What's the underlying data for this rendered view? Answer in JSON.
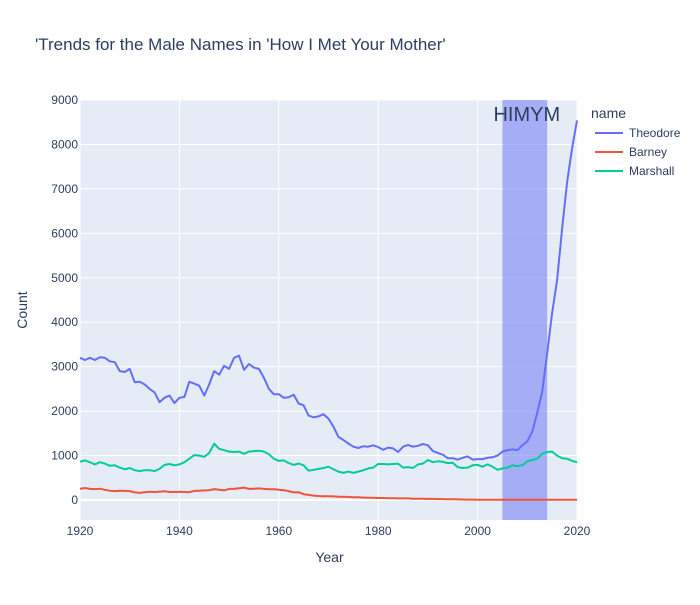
{
  "chart_data": {
    "type": "line",
    "title": "'Trends for the Male Names in 'How I Met Your Mother'",
    "xlabel": "Year",
    "ylabel": "Count",
    "xlim": [
      1920,
      2020
    ],
    "ylim": [
      -450,
      9000
    ],
    "x_ticks": [
      1920,
      1940,
      1960,
      1980,
      2000,
      2020
    ],
    "y_ticks": [
      0,
      1000,
      2000,
      3000,
      4000,
      5000,
      6000,
      7000,
      8000,
      9000
    ],
    "grid": true,
    "legend_title": "name",
    "legend_position": "right",
    "annotation": {
      "label": "HIMYM",
      "x_start": 2005,
      "x_end": 2014,
      "color": "#7a84f8"
    },
    "series": [
      {
        "name": "Theodore",
        "color": "#636efa",
        "x": [
          1920,
          1921,
          1922,
          1923,
          1924,
          1925,
          1926,
          1927,
          1928,
          1929,
          1930,
          1931,
          1932,
          1933,
          1934,
          1935,
          1936,
          1937,
          1938,
          1939,
          1940,
          1941,
          1942,
          1943,
          1944,
          1945,
          1946,
          1947,
          1948,
          1949,
          1950,
          1951,
          1952,
          1953,
          1954,
          1955,
          1956,
          1957,
          1958,
          1959,
          1960,
          1961,
          1962,
          1963,
          1964,
          1965,
          1966,
          1967,
          1968,
          1969,
          1970,
          1971,
          1972,
          1973,
          1974,
          1975,
          1976,
          1977,
          1978,
          1979,
          1980,
          1981,
          1982,
          1983,
          1984,
          1985,
          1986,
          1987,
          1988,
          1989,
          1990,
          1991,
          1992,
          1993,
          1994,
          1995,
          1996,
          1997,
          1998,
          1999,
          2000,
          2001,
          2002,
          2003,
          2004,
          2005,
          2006,
          2007,
          2008,
          2009,
          2010,
          2011,
          2012,
          2013,
          2014,
          2015,
          2016,
          2017,
          2018,
          2019,
          2020
        ],
        "values": [
          3200,
          3150,
          3200,
          3150,
          3210,
          3200,
          3120,
          3100,
          2900,
          2880,
          2950,
          2650,
          2660,
          2600,
          2500,
          2420,
          2200,
          2300,
          2350,
          2180,
          2300,
          2320,
          2660,
          2620,
          2570,
          2350,
          2600,
          2900,
          2820,
          3020,
          2950,
          3200,
          3250,
          2930,
          3060,
          2980,
          2950,
          2750,
          2500,
          2380,
          2380,
          2300,
          2310,
          2370,
          2170,
          2130,
          1900,
          1860,
          1880,
          1930,
          1830,
          1650,
          1420,
          1350,
          1270,
          1200,
          1170,
          1210,
          1200,
          1230,
          1190,
          1130,
          1180,
          1160,
          1080,
          1200,
          1240,
          1200,
          1220,
          1260,
          1230,
          1100,
          1060,
          1020,
          940,
          940,
          910,
          950,
          980,
          910,
          920,
          920,
          950,
          960,
          1000,
          1090,
          1120,
          1140,
          1120,
          1230,
          1320,
          1540,
          1960,
          2440,
          3300,
          4200,
          4950,
          6100,
          7150,
          7900,
          8540
        ]
      },
      {
        "name": "Barney",
        "color": "#ef553b",
        "x": [
          1920,
          1921,
          1922,
          1923,
          1924,
          1925,
          1926,
          1927,
          1928,
          1929,
          1930,
          1931,
          1932,
          1933,
          1934,
          1935,
          1936,
          1937,
          1938,
          1939,
          1940,
          1941,
          1942,
          1943,
          1944,
          1945,
          1946,
          1947,
          1948,
          1949,
          1950,
          1951,
          1952,
          1953,
          1954,
          1955,
          1956,
          1957,
          1958,
          1959,
          1960,
          1961,
          1962,
          1963,
          1964,
          1965,
          1966,
          1967,
          1968,
          1969,
          1970,
          1971,
          1972,
          1973,
          1974,
          1975,
          1976,
          1977,
          1978,
          1979,
          1980,
          1981,
          1982,
          1983,
          1984,
          1985,
          1986,
          1987,
          1988,
          1989,
          1990,
          1991,
          1992,
          1993,
          1994,
          1995,
          1996,
          1997,
          1998,
          1999,
          2000,
          2001,
          2002,
          2003,
          2004,
          2005,
          2006,
          2007,
          2008,
          2009,
          2010,
          2011,
          2012,
          2013,
          2014,
          2015,
          2016,
          2017,
          2018,
          2019,
          2020
        ],
        "values": [
          250,
          270,
          250,
          245,
          255,
          230,
          210,
          200,
          210,
          205,
          200,
          170,
          160,
          175,
          185,
          180,
          190,
          195,
          180,
          180,
          185,
          180,
          175,
          205,
          210,
          215,
          220,
          245,
          230,
          215,
          250,
          250,
          265,
          280,
          250,
          255,
          260,
          250,
          240,
          245,
          230,
          220,
          200,
          170,
          175,
          130,
          115,
          100,
          90,
          85,
          85,
          80,
          75,
          70,
          70,
          60,
          60,
          55,
          50,
          50,
          45,
          45,
          40,
          40,
          35,
          35,
          35,
          30,
          30,
          28,
          25,
          25,
          22,
          20,
          18,
          16,
          14,
          12,
          10,
          8,
          6,
          5,
          5,
          5,
          5,
          5,
          5,
          5,
          5,
          5,
          5,
          5,
          5,
          5,
          5,
          5,
          5,
          5,
          5,
          5,
          5
        ]
      },
      {
        "name": "Marshall",
        "color": "#00cc96",
        "x": [
          1920,
          1921,
          1922,
          1923,
          1924,
          1925,
          1926,
          1927,
          1928,
          1929,
          1930,
          1931,
          1932,
          1933,
          1934,
          1935,
          1936,
          1937,
          1938,
          1939,
          1940,
          1941,
          1942,
          1943,
          1944,
          1945,
          1946,
          1947,
          1948,
          1949,
          1950,
          1951,
          1952,
          1953,
          1954,
          1955,
          1956,
          1957,
          1958,
          1959,
          1960,
          1961,
          1962,
          1963,
          1964,
          1965,
          1966,
          1967,
          1968,
          1969,
          1970,
          1971,
          1972,
          1973,
          1974,
          1975,
          1976,
          1977,
          1978,
          1979,
          1980,
          1981,
          1982,
          1983,
          1984,
          1985,
          1986,
          1987,
          1988,
          1989,
          1990,
          1991,
          1992,
          1993,
          1994,
          1995,
          1996,
          1997,
          1998,
          1999,
          2000,
          2001,
          2002,
          2003,
          2004,
          2005,
          2006,
          2007,
          2008,
          2009,
          2010,
          2011,
          2012,
          2013,
          2014,
          2015,
          2016,
          2017,
          2018,
          2019,
          2020
        ],
        "values": [
          860,
          890,
          850,
          800,
          850,
          820,
          770,
          780,
          730,
          690,
          720,
          670,
          650,
          670,
          670,
          650,
          700,
          790,
          810,
          780,
          800,
          850,
          930,
          1010,
          1000,
          970,
          1060,
          1270,
          1150,
          1120,
          1090,
          1080,
          1090,
          1040,
          1090,
          1100,
          1110,
          1090,
          1030,
          930,
          880,
          890,
          830,
          790,
          820,
          780,
          660,
          680,
          700,
          720,
          750,
          690,
          640,
          610,
          640,
          610,
          640,
          670,
          710,
          730,
          810,
          810,
          800,
          810,
          820,
          730,
          740,
          720,
          800,
          820,
          900,
          850,
          870,
          860,
          830,
          840,
          740,
          720,
          730,
          780,
          790,
          750,
          800,
          750,
          680,
          710,
          730,
          780,
          760,
          780,
          870,
          900,
          930,
          1040,
          1080,
          1090,
          1000,
          940,
          930,
          880,
          850
        ]
      }
    ]
  }
}
